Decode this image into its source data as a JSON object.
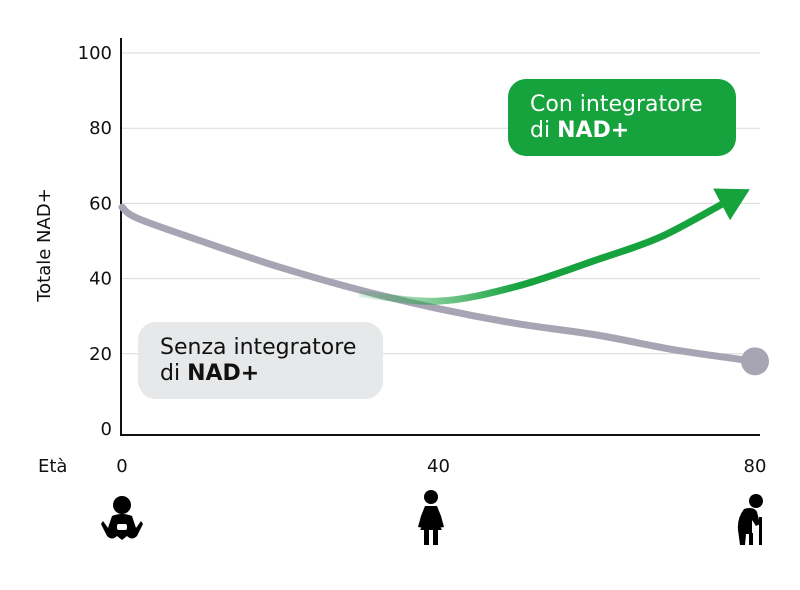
{
  "chart_data": {
    "type": "line",
    "ylabel": "Totale NAD+",
    "xlabel": "Età",
    "x_ticks": [
      0,
      40,
      80
    ],
    "y_ticks": [
      0,
      20,
      40,
      60,
      80,
      100
    ],
    "xlim": [
      0,
      80
    ],
    "ylim": [
      0,
      100
    ],
    "grid": true,
    "series": [
      {
        "name": "Senza integratore di NAD+",
        "color": "#a7a5b4",
        "x": [
          0,
          2,
          10,
          20,
          30,
          40,
          50,
          60,
          70,
          80
        ],
        "y": [
          59,
          56,
          50,
          43,
          37,
          32,
          28,
          25,
          21,
          18
        ]
      },
      {
        "name": "Con integratore di NAD+",
        "color": "#16a23d",
        "x": [
          30,
          40,
          50,
          60,
          68,
          76
        ],
        "y": [
          36,
          34,
          38,
          45,
          51,
          60
        ]
      }
    ],
    "annotations": {
      "with_line1": "Con integratore",
      "with_prefix": "di",
      "with_bold": "NAD+",
      "without_line1": "Senza integratore",
      "without_prefix": "di",
      "without_bold": "NAD+"
    },
    "icons": [
      "baby-icon",
      "woman-icon",
      "elderly-person-icon"
    ]
  }
}
